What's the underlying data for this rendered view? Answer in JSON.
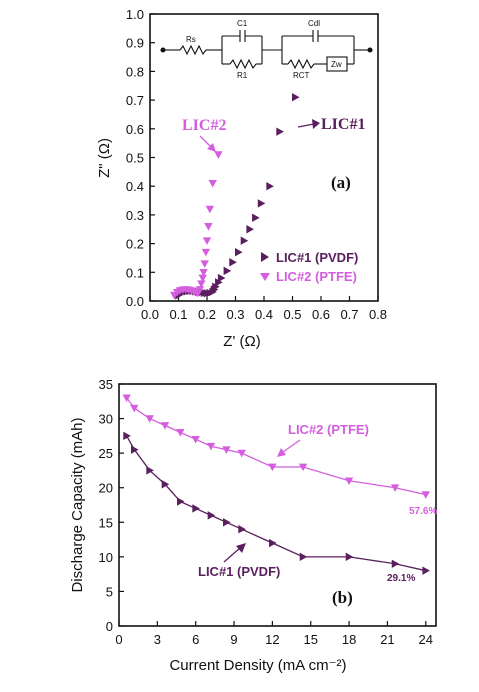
{
  "colors": {
    "dark": "#5a1f5e",
    "light": "#d45ede",
    "axis": "#111111"
  },
  "chart_data": [
    {
      "type": "scatter",
      "panel_label": "(a)",
      "xlabel": "Z' (Ω)",
      "ylabel": "Z\" (Ω)",
      "xlim": [
        0.0,
        0.8
      ],
      "ylim": [
        0.0,
        1.0
      ],
      "xticks": [
        "0.0",
        "0.1",
        "0.2",
        "0.3",
        "0.4",
        "0.5",
        "0.6",
        "0.7",
        "0.8"
      ],
      "yticks": [
        "0.0",
        "0.1",
        "0.2",
        "0.3",
        "0.4",
        "0.5",
        "0.6",
        "0.7",
        "0.8",
        "0.9",
        "1.0"
      ],
      "legend_position": "lower-right",
      "circuit_labels": [
        "Rs",
        "C1",
        "R1",
        "Cdl",
        "RCT",
        "Zw"
      ],
      "series": [
        {
          "name": "LIC#1 (PVDF)",
          "annotation": "LIC#1",
          "marker": "triangle-right",
          "x": [
            0.1,
            0.11,
            0.12,
            0.13,
            0.14,
            0.15,
            0.16,
            0.17,
            0.18,
            0.19,
            0.2,
            0.21,
            0.22,
            0.225,
            0.23,
            0.24,
            0.25,
            0.27,
            0.29,
            0.31,
            0.33,
            0.35,
            0.37,
            0.39,
            0.42,
            0.455,
            0.51
          ],
          "y": [
            0.02,
            0.028,
            0.032,
            0.034,
            0.035,
            0.035,
            0.034,
            0.032,
            0.03,
            0.028,
            0.027,
            0.028,
            0.032,
            0.04,
            0.05,
            0.065,
            0.08,
            0.105,
            0.135,
            0.17,
            0.21,
            0.25,
            0.29,
            0.34,
            0.4,
            0.59,
            0.71
          ]
        },
        {
          "name": "LIC#2 (PTFE)",
          "annotation": "LIC#2",
          "marker": "triangle-down",
          "x": [
            0.085,
            0.095,
            0.105,
            0.115,
            0.125,
            0.135,
            0.145,
            0.155,
            0.165,
            0.17,
            0.175,
            0.18,
            0.185,
            0.188,
            0.192,
            0.196,
            0.2,
            0.205,
            0.21,
            0.22,
            0.24
          ],
          "y": [
            0.02,
            0.03,
            0.036,
            0.039,
            0.04,
            0.039,
            0.036,
            0.032,
            0.028,
            0.03,
            0.04,
            0.06,
            0.08,
            0.1,
            0.13,
            0.17,
            0.21,
            0.26,
            0.32,
            0.41,
            0.51
          ]
        }
      ]
    },
    {
      "type": "line",
      "panel_label": "(b)",
      "xlabel": "Current Density (mA cm⁻²)",
      "ylabel": "Discharge Capacity (mAh)",
      "xlim": [
        0,
        24.8
      ],
      "ylim": [
        0,
        35
      ],
      "xticks": [
        "0",
        "3",
        "6",
        "9",
        "12",
        "15",
        "18",
        "21",
        "24"
      ],
      "yticks": [
        "0",
        "5",
        "10",
        "15",
        "20",
        "25",
        "30",
        "35"
      ],
      "series": [
        {
          "name": "LIC#2 (PTFE)",
          "end_label": "57.6%",
          "marker": "triangle-down",
          "x": [
            0.6,
            1.2,
            2.4,
            3.6,
            4.8,
            6.0,
            7.2,
            8.4,
            9.6,
            12.0,
            14.4,
            18.0,
            21.6,
            24.0
          ],
          "y": [
            33,
            31.5,
            30,
            29,
            28,
            27,
            26,
            25.5,
            25,
            23,
            23,
            21,
            20,
            19
          ]
        },
        {
          "name": "LIC#1 (PVDF)",
          "end_label": "29.1%",
          "marker": "triangle-right",
          "x": [
            0.6,
            1.2,
            2.4,
            3.6,
            4.8,
            6.0,
            7.2,
            8.4,
            9.6,
            12.0,
            14.4,
            18.0,
            21.6,
            24.0
          ],
          "y": [
            27.5,
            25.5,
            22.5,
            20.5,
            18,
            17,
            16,
            15,
            14,
            12,
            10,
            10,
            9,
            8
          ]
        }
      ]
    }
  ]
}
